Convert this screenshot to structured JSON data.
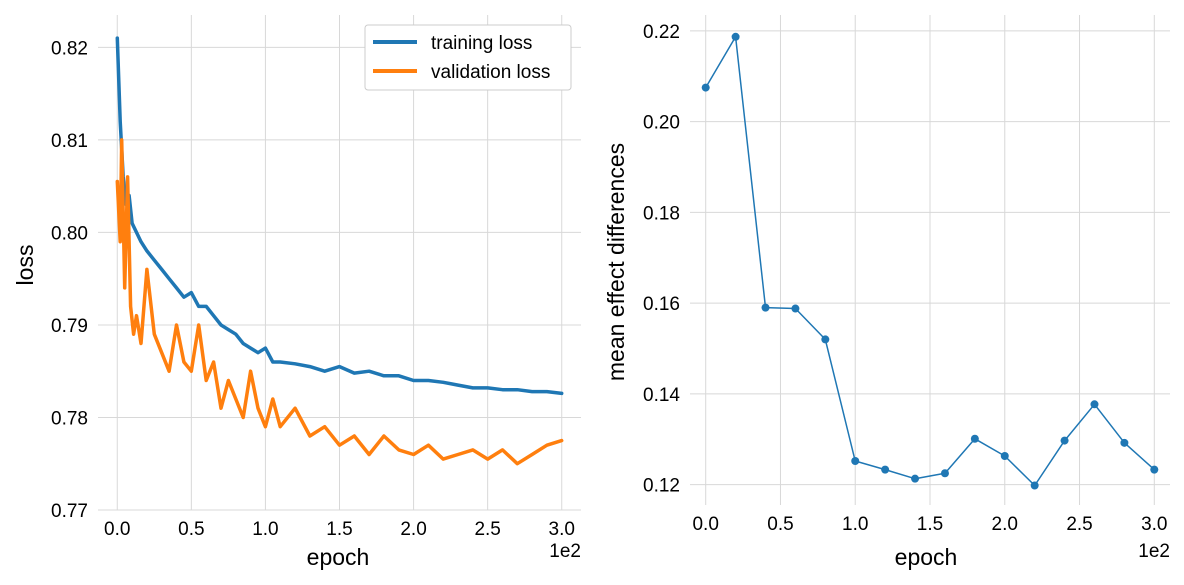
{
  "chart_data": [
    {
      "type": "line",
      "title": "",
      "xlabel": "epoch",
      "ylabel": "loss",
      "x_offset_label": "1e2",
      "xlim": [
        -0.13,
        3.13
      ],
      "ylim": [
        0.77,
        0.8235
      ],
      "xticks": [
        0.0,
        0.5,
        1.0,
        1.5,
        2.0,
        2.5,
        3.0
      ],
      "xtick_labels": [
        "0.0",
        "0.5",
        "1.0",
        "1.5",
        "2.0",
        "2.5",
        "3.0"
      ],
      "yticks": [
        0.77,
        0.78,
        0.79,
        0.8,
        0.81,
        0.82
      ],
      "ytick_labels": [
        "0.77",
        "0.78",
        "0.79",
        "0.80",
        "0.81",
        "0.82"
      ],
      "grid": true,
      "legend_position": "top-right",
      "series": [
        {
          "name": "training loss",
          "color": "#1f77b4",
          "x": [
            0.0,
            0.02,
            0.04,
            0.06,
            0.08,
            0.1,
            0.13,
            0.16,
            0.2,
            0.25,
            0.3,
            0.35,
            0.4,
            0.45,
            0.5,
            0.55,
            0.6,
            0.65,
            0.7,
            0.75,
            0.8,
            0.85,
            0.9,
            0.95,
            1.0,
            1.05,
            1.1,
            1.2,
            1.3,
            1.4,
            1.5,
            1.6,
            1.7,
            1.8,
            1.9,
            2.0,
            2.1,
            2.2,
            2.3,
            2.4,
            2.5,
            2.6,
            2.7,
            2.8,
            2.9,
            3.0
          ],
          "values": [
            0.821,
            0.812,
            0.806,
            0.803,
            0.804,
            0.801,
            0.8,
            0.799,
            0.798,
            0.797,
            0.796,
            0.795,
            0.794,
            0.793,
            0.7935,
            0.792,
            0.792,
            0.791,
            0.79,
            0.7895,
            0.789,
            0.788,
            0.7875,
            0.787,
            0.7875,
            0.786,
            0.786,
            0.7858,
            0.7855,
            0.785,
            0.7855,
            0.7848,
            0.785,
            0.7845,
            0.7845,
            0.784,
            0.784,
            0.7838,
            0.7835,
            0.7832,
            0.7832,
            0.783,
            0.783,
            0.7828,
            0.7828,
            0.7826
          ]
        },
        {
          "name": "validation loss",
          "color": "#ff7f0e",
          "x": [
            0.0,
            0.02,
            0.03,
            0.05,
            0.07,
            0.09,
            0.11,
            0.13,
            0.16,
            0.2,
            0.25,
            0.3,
            0.35,
            0.4,
            0.45,
            0.5,
            0.55,
            0.6,
            0.65,
            0.7,
            0.75,
            0.8,
            0.85,
            0.9,
            0.95,
            1.0,
            1.05,
            1.1,
            1.2,
            1.3,
            1.4,
            1.5,
            1.6,
            1.7,
            1.8,
            1.9,
            2.0,
            2.1,
            2.2,
            2.3,
            2.4,
            2.5,
            2.6,
            2.7,
            2.8,
            2.9,
            3.0
          ],
          "values": [
            0.8055,
            0.799,
            0.81,
            0.794,
            0.806,
            0.792,
            0.789,
            0.791,
            0.788,
            0.796,
            0.789,
            0.787,
            0.785,
            0.79,
            0.786,
            0.785,
            0.79,
            0.784,
            0.786,
            0.781,
            0.784,
            0.782,
            0.78,
            0.785,
            0.781,
            0.779,
            0.782,
            0.779,
            0.781,
            0.778,
            0.779,
            0.777,
            0.778,
            0.776,
            0.778,
            0.7765,
            0.776,
            0.777,
            0.7755,
            0.776,
            0.7765,
            0.7755,
            0.7765,
            0.775,
            0.776,
            0.777,
            0.7775
          ]
        }
      ]
    },
    {
      "type": "line",
      "title": "",
      "xlabel": "epoch",
      "ylabel": "mean effect differences",
      "x_offset_label": "1e2",
      "xlim": [
        -0.105,
        3.105
      ],
      "ylim": [
        0.1155,
        0.2235
      ],
      "xticks": [
        0.0,
        0.5,
        1.0,
        1.5,
        2.0,
        2.5,
        3.0
      ],
      "xtick_labels": [
        "0.0",
        "0.5",
        "1.0",
        "1.5",
        "2.0",
        "2.5",
        "3.0"
      ],
      "yticks": [
        0.12,
        0.14,
        0.16,
        0.18,
        0.2,
        0.22
      ],
      "ytick_labels": [
        "0.12",
        "0.14",
        "0.16",
        "0.18",
        "0.20",
        "0.22"
      ],
      "grid": true,
      "series": [
        {
          "color": "#1f77b4",
          "markers": true,
          "x": [
            0.0,
            0.2,
            0.4,
            0.6,
            0.8,
            1.0,
            1.2,
            1.4,
            1.6,
            1.8,
            2.0,
            2.2,
            2.4,
            2.6,
            2.8,
            3.0
          ],
          "values": [
            0.2075,
            0.2187,
            0.159,
            0.1588,
            0.152,
            0.1252,
            0.1233,
            0.1213,
            0.1225,
            0.1301,
            0.1263,
            0.1198,
            0.1297,
            0.1377,
            0.1292,
            0.1233
          ]
        }
      ]
    }
  ]
}
